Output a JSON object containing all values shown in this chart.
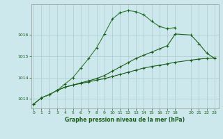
{
  "title": "Graphe pression niveau de la mer (hPa)",
  "background_color": "#cce8ec",
  "grid_color": "#b0d0d4",
  "line_color_dark": "#1a5e1a",
  "line_color_light": "#2e7d32",
  "xlim": [
    -0.3,
    23.5
  ],
  "ylim": [
    1012.55,
    1017.45
  ],
  "yticks": [
    1013,
    1014,
    1015,
    1016
  ],
  "xticks": [
    0,
    1,
    2,
    3,
    4,
    5,
    6,
    7,
    8,
    9,
    10,
    11,
    12,
    13,
    14,
    15,
    16,
    17,
    18,
    20,
    21,
    22,
    23
  ],
  "line1_x": [
    0,
    1,
    2,
    3,
    4,
    5,
    6,
    7,
    8,
    9,
    10,
    11,
    12,
    13,
    14,
    15,
    16,
    17,
    18
  ],
  "line1_y": [
    1012.75,
    1013.05,
    1013.2,
    1013.4,
    1013.7,
    1014.0,
    1014.45,
    1014.9,
    1015.4,
    1016.05,
    1016.75,
    1017.05,
    1017.15,
    1017.1,
    1016.95,
    1016.65,
    1016.4,
    1016.3,
    1016.35
  ],
  "line2_x": [
    0,
    1,
    2,
    3,
    4,
    5,
    6,
    7,
    8,
    9,
    10,
    11,
    12,
    13,
    14,
    15,
    16,
    17,
    18,
    20,
    21,
    22,
    23
  ],
  "line2_y": [
    1012.75,
    1013.05,
    1013.2,
    1013.4,
    1013.55,
    1013.65,
    1013.75,
    1013.85,
    1013.95,
    1014.1,
    1014.3,
    1014.5,
    1014.7,
    1014.9,
    1015.05,
    1015.2,
    1015.35,
    1015.5,
    1016.05,
    1016.0,
    1015.6,
    1015.15,
    1014.9
  ],
  "line3_x": [
    0,
    1,
    2,
    3,
    4,
    5,
    6,
    7,
    8,
    9,
    10,
    11,
    12,
    13,
    14,
    15,
    16,
    17,
    18,
    20,
    21,
    22,
    23
  ],
  "line3_y": [
    1012.75,
    1013.05,
    1013.2,
    1013.4,
    1013.55,
    1013.65,
    1013.72,
    1013.8,
    1013.88,
    1013.95,
    1014.05,
    1014.15,
    1014.25,
    1014.35,
    1014.45,
    1014.52,
    1014.58,
    1014.65,
    1014.72,
    1014.82,
    1014.87,
    1014.9,
    1014.92
  ]
}
